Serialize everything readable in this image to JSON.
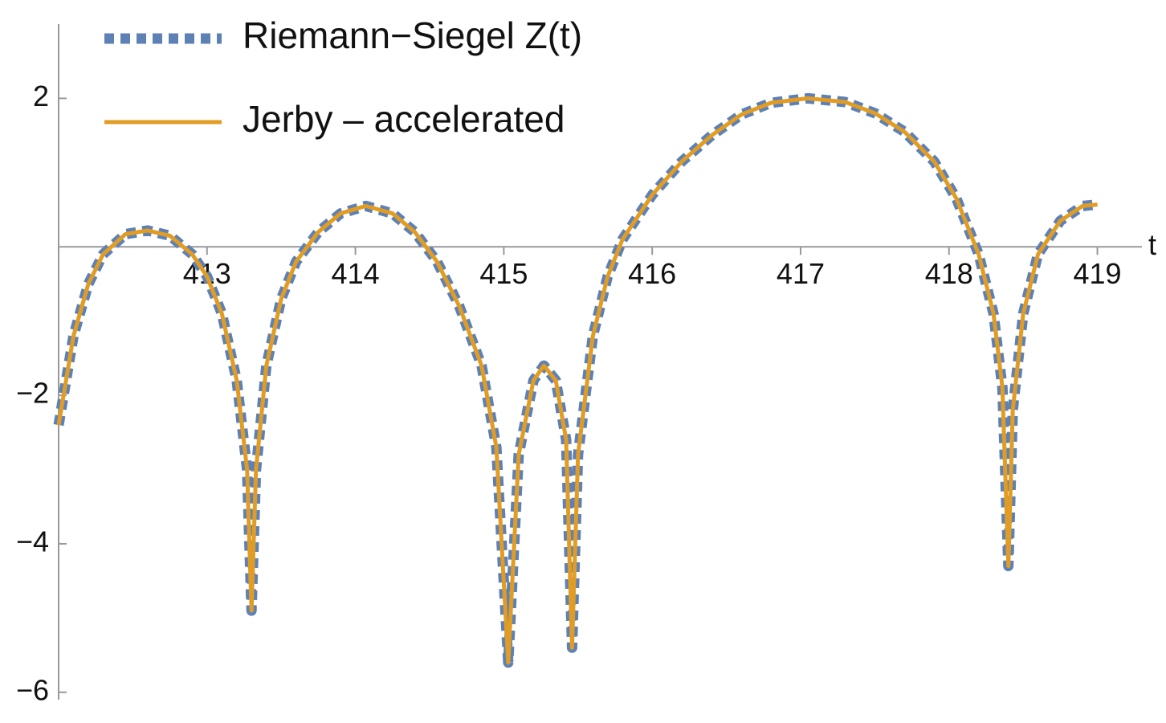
{
  "chart_data": {
    "type": "line",
    "x_label": "t",
    "x": [
      412.0,
      412.1,
      412.2,
      412.3,
      412.45,
      412.6,
      412.75,
      412.9,
      413.0,
      413.1,
      413.2,
      413.27,
      413.3,
      413.33,
      413.4,
      413.5,
      413.6,
      413.75,
      413.9,
      414.07,
      414.25,
      414.4,
      414.55,
      414.7,
      414.85,
      414.95,
      415.03,
      415.1,
      415.2,
      415.27,
      415.35,
      415.42,
      415.46,
      415.5,
      415.6,
      415.7,
      415.8,
      416.0,
      416.2,
      416.4,
      416.6,
      416.8,
      417.05,
      417.3,
      417.5,
      417.7,
      417.9,
      418.05,
      418.2,
      418.3,
      418.36,
      418.4,
      418.43,
      418.5,
      418.6,
      418.75,
      418.9,
      419.0
    ],
    "series": [
      {
        "name": "Riemann−Siegel Z(t)",
        "color": "#5e81b5",
        "dashed": true,
        "values": [
          -2.4,
          -1.2,
          -0.5,
          -0.1,
          0.17,
          0.22,
          0.15,
          -0.1,
          -0.4,
          -0.9,
          -1.8,
          -3.0,
          -4.9,
          -3.0,
          -1.6,
          -0.7,
          -0.2,
          0.2,
          0.45,
          0.55,
          0.45,
          0.2,
          -0.2,
          -0.8,
          -1.6,
          -2.7,
          -5.6,
          -2.8,
          -1.8,
          -1.6,
          -1.8,
          -2.6,
          -5.4,
          -2.8,
          -1.2,
          -0.4,
          0.1,
          0.7,
          1.15,
          1.5,
          1.78,
          1.94,
          2.0,
          1.95,
          1.8,
          1.55,
          1.15,
          0.65,
          -0.1,
          -0.9,
          -1.9,
          -4.3,
          -2.2,
          -0.9,
          -0.1,
          0.35,
          0.55,
          0.57
        ]
      },
      {
        "name": "Jerby – accelerated",
        "color": "#e19c24",
        "dashed": false,
        "values": [
          -2.4,
          -1.2,
          -0.5,
          -0.1,
          0.17,
          0.22,
          0.15,
          -0.1,
          -0.4,
          -0.9,
          -1.8,
          -3.0,
          -4.9,
          -3.0,
          -1.6,
          -0.7,
          -0.2,
          0.2,
          0.45,
          0.55,
          0.45,
          0.2,
          -0.2,
          -0.8,
          -1.6,
          -2.7,
          -5.6,
          -2.8,
          -1.8,
          -1.6,
          -1.8,
          -2.6,
          -5.4,
          -2.8,
          -1.2,
          -0.4,
          0.1,
          0.7,
          1.15,
          1.5,
          1.78,
          1.94,
          2.0,
          1.95,
          1.8,
          1.55,
          1.15,
          0.65,
          -0.1,
          -0.9,
          -1.9,
          -4.3,
          -2.2,
          -0.9,
          -0.1,
          0.35,
          0.55,
          0.57
        ]
      }
    ],
    "xlim": [
      412.0,
      419.3
    ],
    "ylim": [
      -6.1,
      3.0
    ],
    "xticks": [
      413,
      414,
      415,
      416,
      417,
      418,
      419
    ],
    "yticks": [
      2,
      {
        "value": -2,
        "label": "−2"
      },
      {
        "value": -4,
        "label": "−4"
      },
      {
        "value": -6,
        "label": "−6"
      }
    ],
    "legend": "upper left"
  }
}
